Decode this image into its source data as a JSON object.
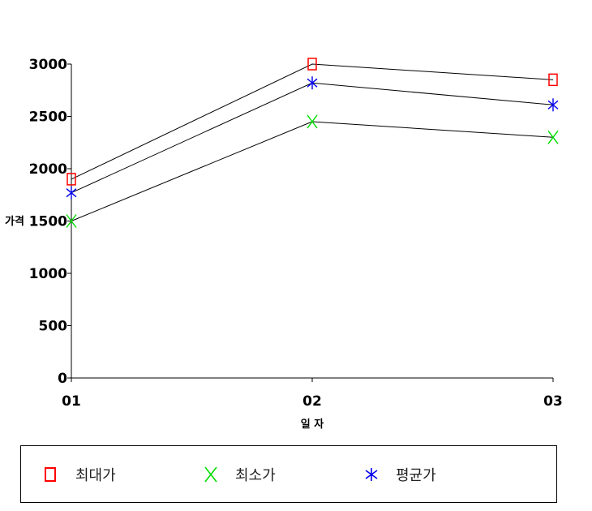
{
  "chart_data": {
    "type": "line",
    "categories": [
      "01",
      "02",
      "03"
    ],
    "xlabel": "일 자",
    "ylabel": "가격",
    "ylim": [
      0,
      3000
    ],
    "yticks": [
      0,
      500,
      1000,
      1500,
      2000,
      2500,
      3000
    ],
    "grid": false,
    "legend_placement": "bottom",
    "series": [
      {
        "name": "최대가",
        "values": [
          1900,
          3000,
          2850
        ],
        "color": "#ff0000",
        "marker": "square"
      },
      {
        "name": "최소가",
        "values": [
          1500,
          2450,
          2300
        ],
        "color": "#00dd00",
        "marker": "x"
      },
      {
        "name": "평균가",
        "values": [
          1770,
          2820,
          2610
        ],
        "color": "#0000ee",
        "marker": "asterisk"
      }
    ],
    "line_color": "#000000"
  }
}
